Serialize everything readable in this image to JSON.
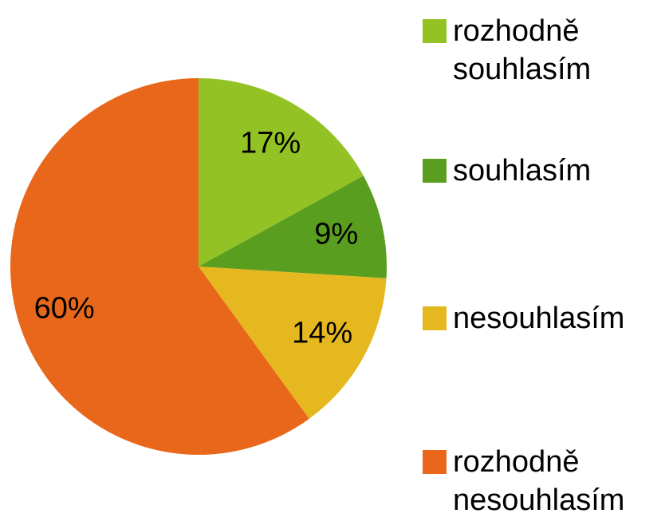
{
  "chart_data": {
    "type": "pie",
    "categories": [
      "rozhodně souhlasím",
      "souhlasím",
      "nesouhlasím",
      "rozhodně nesouhlasím"
    ],
    "values": [
      17,
      9,
      14,
      60
    ],
    "value_labels": [
      "17%",
      "9%",
      "14%",
      "60%"
    ],
    "colors": [
      "#93c225",
      "#5a9e20",
      "#e6b820",
      "#e8671a"
    ],
    "legend": "right"
  }
}
